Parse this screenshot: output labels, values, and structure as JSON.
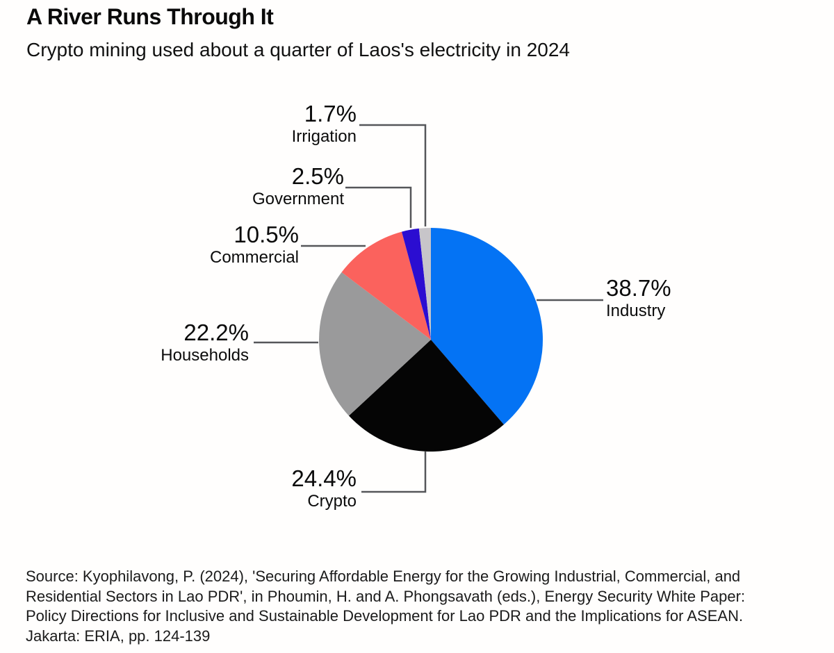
{
  "header": {
    "title": "A River Runs Through It",
    "subtitle": "Crypto mining used about a quarter of Laos's electricity in 2024"
  },
  "chart_data": {
    "type": "pie",
    "title": "A River Runs Through It",
    "subtitle": "Crypto mining used about a quarter of Laos's electricity in 2024",
    "unit": "%",
    "start_angle_deg": 0,
    "direction": "clockwise",
    "legend_position": "none",
    "label_style": "external-callouts-with-leader-lines",
    "slices": [
      {
        "label": "Industry",
        "value": 38.7,
        "display": "38.7%",
        "color": "#0473f4"
      },
      {
        "label": "Crypto",
        "value": 24.4,
        "display": "24.4%",
        "color": "#050505"
      },
      {
        "label": "Households",
        "value": 22.2,
        "display": "22.2%",
        "color": "#9a9a9b"
      },
      {
        "label": "Commercial",
        "value": 10.5,
        "display": "10.5%",
        "color": "#fb625d"
      },
      {
        "label": "Government",
        "value": 2.5,
        "display": "2.5%",
        "color": "#2b0dd1"
      },
      {
        "label": "Irrigation",
        "value": 1.7,
        "display": "1.7%",
        "color": "#c7c5c9"
      }
    ]
  },
  "source": {
    "lines": [
      "Source: Kyophilavong, P. (2024), 'Securing Affordable Energy for the Growing Industrial, Commercial, and",
      "Residential Sectors in Lao PDR', in Phoumin, H. and A. Phongsavath (eds.), Energy Security White Paper:",
      "Policy Directions for Inclusive and Sustainable Development for Lao PDR and the Implications for ASEAN.",
      "Jakarta: ERIA, pp. 124-139"
    ]
  }
}
